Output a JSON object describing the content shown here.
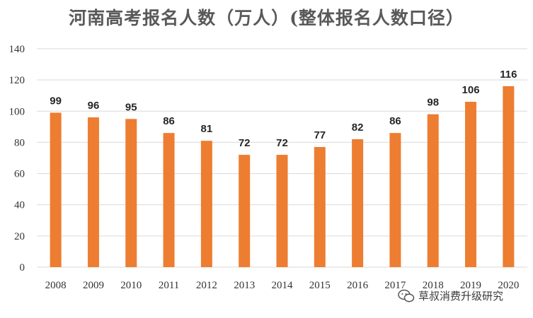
{
  "chart_data": {
    "type": "bar",
    "title": "河南高考报名人数（万人）(整体报名人数口径）",
    "categories": [
      "2008",
      "2009",
      "2010",
      "2011",
      "2012",
      "2013",
      "2014",
      "2015",
      "2016",
      "2017",
      "2018",
      "2019",
      "2020"
    ],
    "values": [
      99,
      96,
      95,
      86,
      81,
      72,
      72,
      77,
      82,
      86,
      98,
      106,
      116
    ],
    "y_ticks": [
      0,
      20,
      40,
      60,
      80,
      100,
      120,
      140
    ],
    "ylim": [
      0,
      140
    ],
    "xlabel": "",
    "ylabel": "",
    "grid": true,
    "legend": "none",
    "bar_color": "#ED7D31",
    "grid_color": "#D9D9D9"
  },
  "watermark": {
    "text": "草叔消费升级研究",
    "icon": "wechat-icon"
  }
}
